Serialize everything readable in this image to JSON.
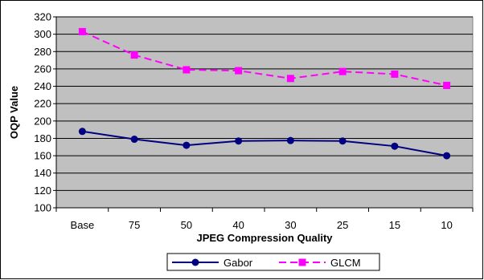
{
  "chart_data": {
    "type": "line",
    "title": "",
    "xlabel": "JPEG Compression Quality",
    "ylabel": "OQP Value",
    "categories": [
      "Base",
      "75",
      "50",
      "40",
      "30",
      "25",
      "15",
      "10"
    ],
    "ylim": [
      100,
      320
    ],
    "yticks": [
      100,
      120,
      140,
      160,
      180,
      200,
      220,
      240,
      260,
      280,
      300,
      320
    ],
    "grid": true,
    "legend_placement": "bottom",
    "plot_background": "#c0c0c0",
    "series": [
      {
        "name": "Gabor",
        "values": [
          188,
          179,
          172,
          177,
          177.5,
          177,
          171,
          160
        ],
        "color": "#000080",
        "line_style": "solid",
        "marker": "circle"
      },
      {
        "name": "GLCM",
        "values": [
          303,
          276,
          259,
          258,
          249,
          257,
          254,
          241
        ],
        "color": "#ff00ff",
        "line_style": "dashed",
        "marker": "square"
      }
    ]
  }
}
